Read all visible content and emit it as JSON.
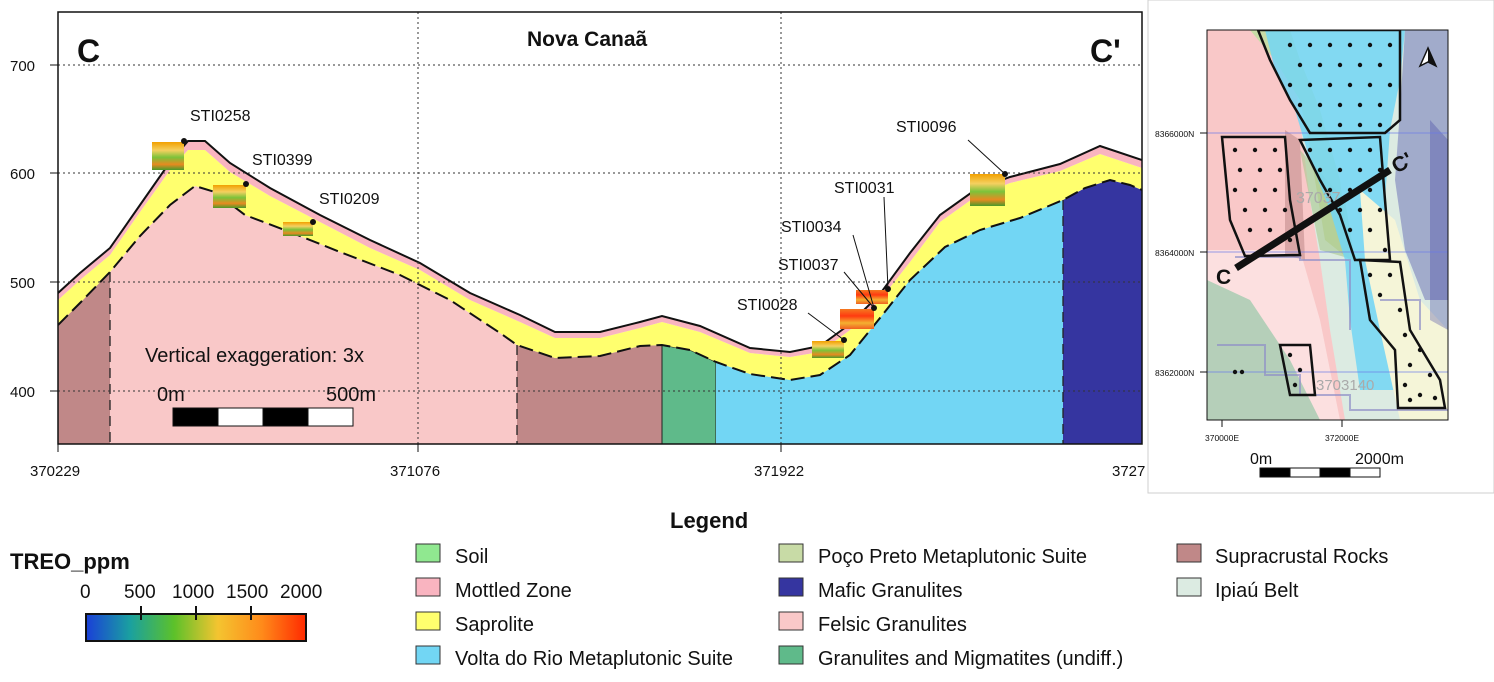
{
  "section": {
    "title": "Nova Canaã",
    "start_label": "C",
    "end_label": "C'",
    "y_ticks": [
      "700",
      "600",
      "500",
      "400"
    ],
    "x_ticks": [
      "370229",
      "371076",
      "371922",
      "3727"
    ],
    "vertical_exaggeration": "Vertical exaggeration: 3x",
    "scale_start": "0m",
    "scale_end": "500m",
    "drillholes": [
      "STI0258",
      "STI0399",
      "STI0209",
      "STI0096",
      "STI0031",
      "STI0034",
      "STI0037",
      "STI0028"
    ]
  },
  "inset_map": {
    "y_ticks": [
      "8366000N",
      "8364000N",
      "8362000N"
    ],
    "x_ticks": [
      "370000E",
      "372000E"
    ],
    "section_start": "C",
    "section_end": "C'",
    "faint_labels": [
      "37037",
      "3703140"
    ],
    "scale_start": "0m",
    "scale_end": "2000m",
    "north_arrow": "north-arrow-icon"
  },
  "colorbar": {
    "title": "TREO_ppm",
    "ticks": [
      "0",
      "500",
      "1000",
      "1500",
      "2000"
    ]
  },
  "legend": {
    "title": "Legend",
    "items": [
      {
        "label": "Soil",
        "color": "#90e890"
      },
      {
        "label": "Mottled Zone",
        "color": "#f9b4c0"
      },
      {
        "label": "Saprolite",
        "color": "#ffff6e"
      },
      {
        "label": "Volta do Rio Metaplutonic Suite",
        "color": "#72d6f4"
      },
      {
        "label": "Poço Preto Metaplutonic Suite",
        "color": "#c8dba6"
      },
      {
        "label": "Mafic Granulites",
        "color": "#3535a0"
      },
      {
        "label": "Felsic Granulites",
        "color": "#f9c8c8"
      },
      {
        "label": "Granulites and Migmatites (undiff.)",
        "color": "#5fba8a"
      },
      {
        "label": "Supracrustal Rocks",
        "color": "#c08888"
      },
      {
        "label": "Ipiaú Belt",
        "color": "#dcebe2"
      }
    ]
  }
}
